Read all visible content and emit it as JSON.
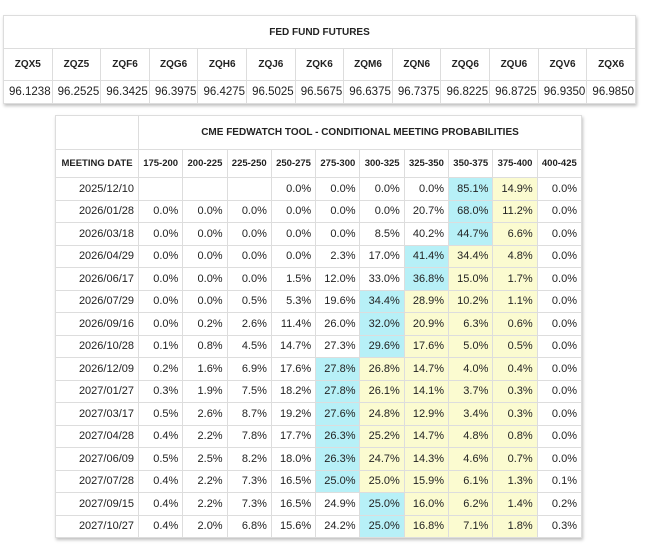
{
  "futures": {
    "title": "FED FUND FUTURES",
    "codes": [
      "ZQX5",
      "ZQZ5",
      "ZQF6",
      "ZQG6",
      "ZQH6",
      "ZQJ6",
      "ZQK6",
      "ZQM6",
      "ZQN6",
      "ZQQ6",
      "ZQU6",
      "ZQV6",
      "ZQX6"
    ],
    "prices": [
      "96.1238",
      "96.2525",
      "96.3425",
      "96.3975",
      "96.4275",
      "96.5025",
      "96.5675",
      "96.6375",
      "96.7375",
      "96.8225",
      "96.8725",
      "96.9350",
      "96.9850"
    ]
  },
  "probabilities": {
    "title": "CME FEDWATCH TOOL - CONDITIONAL MEETING PROBABILITIES",
    "date_header": "MEETING DATE",
    "ranges": [
      "175-200",
      "200-225",
      "225-250",
      "250-275",
      "275-300",
      "300-325",
      "325-350",
      "350-375",
      "375-400",
      "400-425"
    ],
    "current_range": "375-400",
    "peak_color": "#b7f0f7",
    "path_color": "#fbfbd0",
    "rows": [
      {
        "date": "2025/12/10",
        "values": [
          null,
          null,
          null,
          "0.0%",
          "0.0%",
          "0.0%",
          "0.0%",
          "85.1%",
          "14.9%",
          "0.0%"
        ]
      },
      {
        "date": "2026/01/28",
        "values": [
          "0.0%",
          "0.0%",
          "0.0%",
          "0.0%",
          "0.0%",
          "0.0%",
          "20.7%",
          "68.0%",
          "11.2%",
          "0.0%"
        ]
      },
      {
        "date": "2026/03/18",
        "values": [
          "0.0%",
          "0.0%",
          "0.0%",
          "0.0%",
          "0.0%",
          "8.5%",
          "40.2%",
          "44.7%",
          "6.6%",
          "0.0%"
        ]
      },
      {
        "date": "2026/04/29",
        "values": [
          "0.0%",
          "0.0%",
          "0.0%",
          "0.0%",
          "2.3%",
          "17.0%",
          "41.4%",
          "34.4%",
          "4.8%",
          "0.0%"
        ]
      },
      {
        "date": "2026/06/17",
        "values": [
          "0.0%",
          "0.0%",
          "0.0%",
          "1.5%",
          "12.0%",
          "33.0%",
          "36.8%",
          "15.0%",
          "1.7%",
          "0.0%"
        ]
      },
      {
        "date": "2026/07/29",
        "values": [
          "0.0%",
          "0.0%",
          "0.5%",
          "5.3%",
          "19.6%",
          "34.4%",
          "28.9%",
          "10.2%",
          "1.1%",
          "0.0%"
        ]
      },
      {
        "date": "2026/09/16",
        "values": [
          "0.0%",
          "0.2%",
          "2.6%",
          "11.4%",
          "26.0%",
          "32.0%",
          "20.9%",
          "6.3%",
          "0.6%",
          "0.0%"
        ]
      },
      {
        "date": "2026/10/28",
        "values": [
          "0.1%",
          "0.8%",
          "4.5%",
          "14.7%",
          "27.3%",
          "29.6%",
          "17.6%",
          "5.0%",
          "0.5%",
          "0.0%"
        ]
      },
      {
        "date": "2026/12/09",
        "values": [
          "0.2%",
          "1.6%",
          "6.9%",
          "17.6%",
          "27.8%",
          "26.8%",
          "14.7%",
          "4.0%",
          "0.4%",
          "0.0%"
        ]
      },
      {
        "date": "2027/01/27",
        "values": [
          "0.3%",
          "1.9%",
          "7.5%",
          "18.2%",
          "27.8%",
          "26.1%",
          "14.1%",
          "3.7%",
          "0.3%",
          "0.0%"
        ]
      },
      {
        "date": "2027/03/17",
        "values": [
          "0.5%",
          "2.6%",
          "8.7%",
          "19.2%",
          "27.6%",
          "24.8%",
          "12.9%",
          "3.4%",
          "0.3%",
          "0.0%"
        ]
      },
      {
        "date": "2027/04/28",
        "values": [
          "0.4%",
          "2.2%",
          "7.8%",
          "17.7%",
          "26.3%",
          "25.2%",
          "14.7%",
          "4.8%",
          "0.8%",
          "0.0%"
        ]
      },
      {
        "date": "2027/06/09",
        "values": [
          "0.5%",
          "2.5%",
          "8.2%",
          "18.0%",
          "26.3%",
          "24.7%",
          "14.3%",
          "4.6%",
          "0.7%",
          "0.0%"
        ]
      },
      {
        "date": "2027/07/28",
        "values": [
          "0.4%",
          "2.2%",
          "7.3%",
          "16.5%",
          "25.0%",
          "25.0%",
          "15.9%",
          "6.1%",
          "1.3%",
          "0.1%"
        ]
      },
      {
        "date": "2027/09/15",
        "values": [
          "0.4%",
          "2.2%",
          "7.3%",
          "16.5%",
          "24.9%",
          "25.0%",
          "16.0%",
          "6.2%",
          "1.4%",
          "0.2%"
        ]
      },
      {
        "date": "2027/10/27",
        "values": [
          "0.4%",
          "2.0%",
          "6.8%",
          "15.6%",
          "24.2%",
          "25.0%",
          "16.8%",
          "7.1%",
          "1.8%",
          "0.3%"
        ]
      }
    ]
  }
}
